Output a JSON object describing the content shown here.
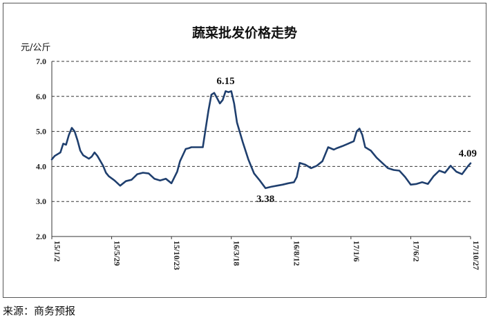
{
  "chart_data": {
    "type": "line",
    "title": "蔬菜批发价格走势",
    "ylabel": "元/公斤",
    "ylim": [
      2.0,
      7.0
    ],
    "yticks": [
      "2.0",
      "3.0",
      "4.0",
      "5.0",
      "6.0",
      "7.0"
    ],
    "ytick_values": [
      2.0,
      3.0,
      4.0,
      5.0,
      6.0,
      7.0
    ],
    "xlim": [
      "2015-01-02",
      "2017-10-27"
    ],
    "xticks": [
      {
        "label": "15/1/2",
        "date": "2015-01-02"
      },
      {
        "label": "15/5/29",
        "date": "2015-05-29"
      },
      {
        "label": "15/10/23",
        "date": "2015-10-23"
      },
      {
        "label": "16/3/18",
        "date": "2016-03-18"
      },
      {
        "label": "16/8/12",
        "date": "2016-08-12"
      },
      {
        "label": "17/1/6",
        "date": "2017-01-06"
      },
      {
        "label": "17/6/2",
        "date": "2017-06-02"
      },
      {
        "label": "17/10/27",
        "date": "2017-10-27"
      }
    ],
    "grid": "horizontal-dashed",
    "line_color": "#1f3f6e",
    "series": [
      {
        "x": [
          "2015-01-02",
          "2015-01-09",
          "2015-01-23",
          "2015-01-30",
          "2015-02-06",
          "2015-02-13",
          "2015-02-20",
          "2015-02-27",
          "2015-03-06",
          "2015-03-13",
          "2015-03-20",
          "2015-04-03",
          "2015-04-10",
          "2015-04-17",
          "2015-04-24",
          "2015-05-08",
          "2015-05-15",
          "2015-05-22",
          "2015-06-05",
          "2015-06-19",
          "2015-07-03",
          "2015-07-17",
          "2015-07-31",
          "2015-08-14",
          "2015-08-28",
          "2015-09-11",
          "2015-09-25",
          "2015-10-09",
          "2015-10-23",
          "2015-11-06",
          "2015-11-13",
          "2015-11-27",
          "2015-12-04",
          "2015-12-11",
          "2015-12-25",
          "2016-01-08",
          "2016-01-22",
          "2016-01-29",
          "2016-02-05",
          "2016-02-12",
          "2016-02-19",
          "2016-02-26",
          "2016-03-04",
          "2016-03-11",
          "2016-03-18",
          "2016-03-25",
          "2016-04-01",
          "2016-04-15",
          "2016-04-29",
          "2016-05-13",
          "2016-05-27",
          "2016-06-10",
          "2016-06-24",
          "2016-07-08",
          "2016-07-22",
          "2016-08-05",
          "2016-08-19",
          "2016-08-26",
          "2016-09-02",
          "2016-09-16",
          "2016-09-30",
          "2016-10-14",
          "2016-10-28",
          "2016-11-11",
          "2016-11-25",
          "2016-12-02",
          "2016-12-16",
          "2016-12-30",
          "2017-01-13",
          "2017-01-20",
          "2017-01-27",
          "2017-02-03",
          "2017-02-10",
          "2017-02-24",
          "2017-03-10",
          "2017-03-24",
          "2017-04-07",
          "2017-04-21",
          "2017-05-05",
          "2017-05-19",
          "2017-06-02",
          "2017-06-16",
          "2017-06-30",
          "2017-07-14",
          "2017-07-28",
          "2017-08-11",
          "2017-08-25",
          "2017-09-08",
          "2017-09-22",
          "2017-10-06",
          "2017-10-20",
          "2017-10-27"
        ],
        "values": [
          4.2,
          4.3,
          4.4,
          4.65,
          4.62,
          4.9,
          5.1,
          5.0,
          4.75,
          4.45,
          4.32,
          4.22,
          4.28,
          4.4,
          4.3,
          4.02,
          3.82,
          3.72,
          3.6,
          3.45,
          3.58,
          3.62,
          3.78,
          3.82,
          3.8,
          3.65,
          3.6,
          3.65,
          3.52,
          3.85,
          4.15,
          4.5,
          4.52,
          4.55,
          4.55,
          4.55,
          5.6,
          6.05,
          6.1,
          5.95,
          5.8,
          5.9,
          6.15,
          6.12,
          6.15,
          5.8,
          5.25,
          4.7,
          4.2,
          3.8,
          3.6,
          3.38,
          3.42,
          3.45,
          3.48,
          3.52,
          3.55,
          3.7,
          4.1,
          4.05,
          3.95,
          4.02,
          4.15,
          4.55,
          4.48,
          4.52,
          4.58,
          4.65,
          4.72,
          5.0,
          5.08,
          4.9,
          4.55,
          4.45,
          4.25,
          4.1,
          3.95,
          3.9,
          3.88,
          3.7,
          3.48,
          3.5,
          3.55,
          3.5,
          3.72,
          3.88,
          3.82,
          4.02,
          3.85,
          3.78,
          4.0,
          4.09
        ]
      }
    ],
    "annotations": [
      {
        "text": "6.15",
        "x": "2016-03-04",
        "y": 6.15,
        "pos": "above"
      },
      {
        "text": "3.38",
        "x": "2016-06-10",
        "y": 3.38,
        "pos": "below"
      },
      {
        "text": "4.09",
        "x": "2017-10-20",
        "y": 4.09,
        "pos": "above"
      }
    ]
  },
  "source": "来源：商务预报"
}
